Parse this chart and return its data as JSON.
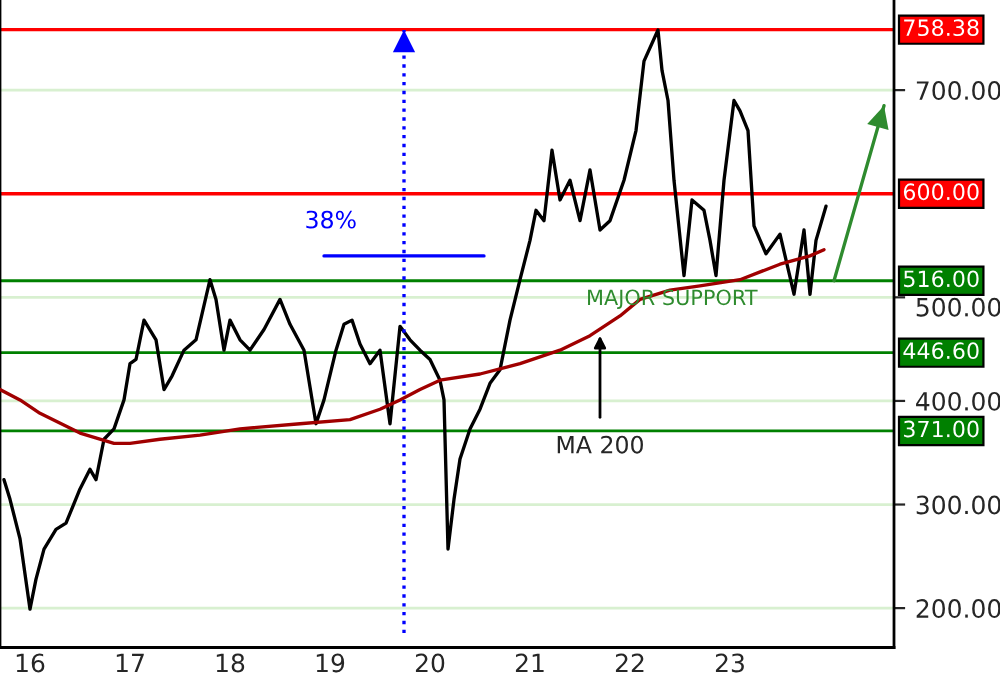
{
  "chart_data": {
    "type": "line",
    "x": [
      2015.74,
      2015.8,
      2015.9,
      2016.0,
      2016.06,
      2016.14,
      2016.26,
      2016.36,
      2016.5,
      2016.6,
      2016.66,
      2016.74,
      2016.84,
      2016.94,
      2017.0,
      2017.06,
      2017.14,
      2017.26,
      2017.34,
      2017.42,
      2017.54,
      2017.66,
      2017.8,
      2017.86,
      2017.94,
      2018.0,
      2018.1,
      2018.2,
      2018.34,
      2018.5,
      2018.6,
      2018.74,
      2018.86,
      2018.94,
      2019.06,
      2019.14,
      2019.22,
      2019.3,
      2019.4,
      2019.5,
      2019.6,
      2019.7,
      2019.8,
      2019.9,
      2020.0,
      2020.1,
      2020.14,
      2020.18,
      2020.24,
      2020.3,
      2020.4,
      2020.5,
      2020.6,
      2020.7,
      2020.8,
      2020.9,
      2021.0,
      2021.06,
      2021.14,
      2021.22,
      2021.3,
      2021.4,
      2021.5,
      2021.6,
      2021.7,
      2021.8,
      2021.94,
      2022.06,
      2022.14,
      2022.28,
      2022.32,
      2022.38,
      2022.44,
      2022.54,
      2022.62,
      2022.74,
      2022.8,
      2022.86,
      2022.94,
      2023.04,
      2023.1,
      2023.18,
      2023.24,
      2023.36,
      2023.5,
      2023.64,
      2023.74,
      2023.8,
      2023.86,
      2023.96
    ],
    "series": [
      {
        "color": "#000000",
        "values": [
          324,
          305,
          267,
          199,
          228,
          257,
          276,
          282,
          315,
          334,
          324,
          363,
          373,
          401,
          436,
          440,
          478,
          459,
          411,
          424,
          449,
          459,
          517,
          498,
          449,
          478,
          459,
          449,
          469,
          498,
          474,
          449,
          378,
          401,
          449,
          474,
          478,
          455,
          436,
          449,
          378,
          472,
          459,
          449,
          440,
          420,
          401,
          257,
          305,
          344,
          373,
          392,
          417,
          430,
          478,
          517,
          555,
          584,
          574,
          642,
          594,
          613,
          574,
          623,
          565,
          574,
          613,
          661,
          728,
          758,
          719,
          690,
          613,
          521,
          594,
          584,
          555,
          521,
          613,
          690,
          680,
          661,
          569,
          542,
          561,
          503,
          565,
          503,
          555,
          588
        ]
      },
      {
        "color": "#a00000",
        "x": [
          2015.7,
          2015.9,
          2016.1,
          2016.5,
          2016.84,
          2017.0,
          2017.3,
          2017.7,
          2018.1,
          2018.7,
          2019.2,
          2019.5,
          2019.7,
          2019.9,
          2020.1,
          2020.5,
          2020.9,
          2021.3,
          2021.6,
          2021.9,
          2022.1,
          2022.4,
          2022.7,
          2023.1,
          2023.5,
          2023.8,
          2023.94
        ],
        "values": [
          411,
          401,
          388,
          369,
          359,
          359,
          363,
          367,
          373,
          378,
          382,
          392,
          401,
          411,
          420,
          426,
          436,
          449,
          463,
          482,
          498,
          507,
          511,
          517,
          532,
          540,
          546
        ]
      },
      {
        "color": "#0000ff",
        "x": [
          2018.94,
          2020.54
        ],
        "values": [
          540,
          540
        ]
      },
      {
        "color": "#0000ff",
        "x": [
          2019.74,
          2019.74
        ],
        "values": [
          176,
          758
        ],
        "line_style": "dotted"
      },
      {
        "color": "#2e8b2e",
        "x": [
          2024.04,
          2024.54
        ],
        "values": [
          516,
          685
        ]
      }
    ],
    "xlim": [
      2015.7,
      2024.64
    ],
    "ylim": [
      162,
      787
    ],
    "xticks": [
      {
        "value": 2016,
        "label": "16"
      },
      {
        "value": 2017,
        "label": "17"
      },
      {
        "value": 2018,
        "label": "18"
      },
      {
        "value": 2019,
        "label": "19"
      },
      {
        "value": 2020,
        "label": "20"
      },
      {
        "value": 2021,
        "label": "21"
      },
      {
        "value": 2022,
        "label": "22"
      },
      {
        "value": 2023,
        "label": "23"
      }
    ],
    "yticks": [
      {
        "value": 200,
        "label": "200.00"
      },
      {
        "value": 300,
        "label": "300.00"
      },
      {
        "value": 400,
        "label": "400.00"
      },
      {
        "value": 500,
        "label": "500.00"
      },
      {
        "value": 700,
        "label": "700.00"
      }
    ],
    "grid": "y",
    "ref_lines": [
      {
        "axis": "y",
        "value": 758.38,
        "label": "758.38",
        "color": "#ff0000"
      },
      {
        "axis": "y",
        "value": 600,
        "label": "600.00",
        "color": "#ff0000"
      },
      {
        "axis": "y",
        "value": 516,
        "label": "516.00",
        "color": "#008000"
      },
      {
        "axis": "y",
        "value": 446.6,
        "label": "446.60",
        "color": "#008000"
      },
      {
        "axis": "y",
        "value": 371,
        "label": "371.00",
        "color": "#008000"
      }
    ],
    "annotations": [
      "38%",
      {
        "text": "MAJOR SUPPORT",
        "x": 2021.56,
        "y": 516
      },
      {
        "text": "MA 200",
        "x": 2021.7,
        "y": 463
      }
    ]
  }
}
